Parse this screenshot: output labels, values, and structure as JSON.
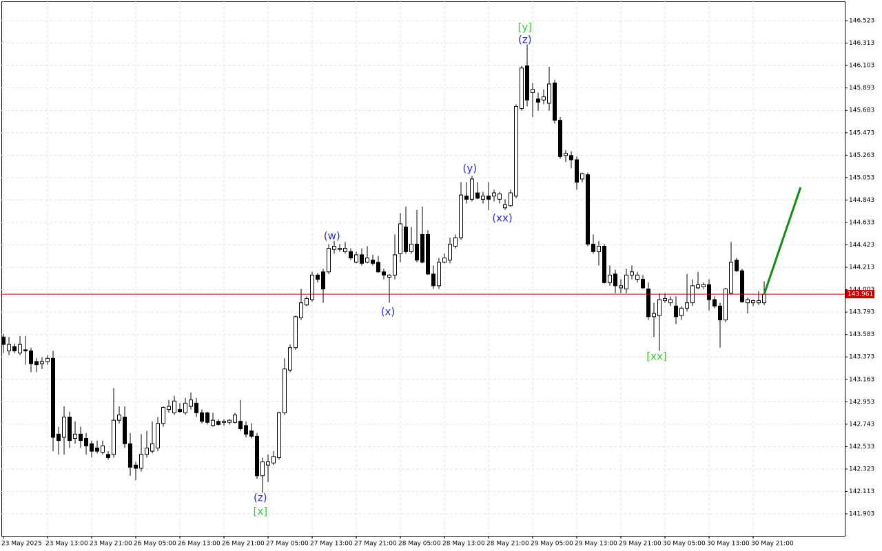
{
  "chart_data": {
    "type": "candlestick",
    "xlim": [
      -0.375,
      152.625
    ],
    "ylim": [
      141.697,
      146.704
    ],
    "yticks": [
      146.523,
      146.313,
      146.103,
      145.893,
      145.683,
      145.473,
      145.263,
      145.053,
      144.843,
      144.633,
      144.423,
      144.213,
      144.003,
      143.793,
      143.583,
      143.373,
      143.163,
      142.953,
      142.743,
      142.533,
      142.323,
      142.113,
      141.903
    ],
    "xticks": [
      {
        "value": 0,
        "label": "23 May 2025"
      },
      {
        "value": 8,
        "label": "23 May 13:00"
      },
      {
        "value": 16,
        "label": "23 May 21:00"
      },
      {
        "value": 24,
        "label": "26 May 05:00"
      },
      {
        "value": 32,
        "label": "26 May 13:00"
      },
      {
        "value": 40,
        "label": "26 May 21:00"
      },
      {
        "value": 48,
        "label": "27 May 05:00"
      },
      {
        "value": 56,
        "label": "27 May 13:00"
      },
      {
        "value": 64,
        "label": "27 May 21:00"
      },
      {
        "value": 72,
        "label": "28 May 05:00"
      },
      {
        "value": 80,
        "label": "28 May 13:00"
      },
      {
        "value": 88,
        "label": "28 May 21:00"
      },
      {
        "value": 96,
        "label": "29 May 05:00"
      },
      {
        "value": 104,
        "label": "29 May 13:00"
      },
      {
        "value": 112,
        "label": "29 May 21:00"
      },
      {
        "value": 120,
        "label": "30 May 05:00"
      },
      {
        "value": 128,
        "label": "30 May 13:00"
      },
      {
        "value": 136,
        "label": "30 May 21:00"
      }
    ],
    "grid": true,
    "up_color": "#ffffff",
    "down_color": "#000000",
    "series": {
      "open": [
        143.56,
        143.43,
        143.47,
        143.41,
        143.44,
        143.43,
        143.33,
        143.31,
        143.33,
        143.36,
        142.65,
        142.62,
        142.81,
        142.61,
        142.65,
        142.61,
        142.56,
        142.52,
        142.48,
        142.46,
        142.46,
        142.78,
        142.81,
        142.56,
        142.36,
        142.33,
        142.46,
        142.49,
        142.52,
        142.75,
        142.88,
        142.85,
        142.88,
        142.85,
        142.91,
        142.94,
        142.85,
        142.85,
        142.73,
        142.77,
        142.76,
        142.76,
        142.76,
        142.77,
        142.73,
        142.68,
        142.63,
        142.26,
        142.36,
        142.38,
        142.43,
        142.85,
        143.25,
        143.46,
        143.74,
        143.86,
        143.91,
        144.14,
        144.17,
        144.17,
        144.38,
        144.38,
        144.36,
        144.36,
        144.26,
        144.33,
        144.26,
        144.28,
        144.26,
        144.17,
        144.12,
        144.14,
        144.34,
        144.59,
        144.36,
        144.43,
        144.52,
        144.52,
        144.15,
        144.04,
        144.26,
        144.28,
        144.41,
        144.49,
        144.88,
        144.85,
        144.91,
        144.85,
        144.88,
        144.88,
        144.85,
        144.77,
        144.79,
        144.88,
        145.7,
        146.1,
        145.85,
        145.79,
        145.78,
        145.75,
        145.94,
        145.59,
        145.26,
        145.26,
        145.22,
        145.04,
        145.08,
        144.43,
        144.36,
        144.41,
        144.07,
        144.15,
        144.02,
        144.01,
        144.14,
        144.1,
        144.1,
        144.01,
        143.75,
        143.76,
        143.9,
        143.88,
        143.85,
        143.76,
        143.83,
        143.88,
        144.02,
        144.03,
        144.05,
        143.91,
        143.85,
        143.72,
        143.97,
        144.28,
        144.18,
        143.88,
        143.88,
        143.88,
        143.88
      ],
      "high": [
        143.59,
        143.56,
        143.5,
        143.57,
        143.57,
        143.46,
        143.36,
        143.37,
        143.39,
        143.43,
        142.72,
        142.91,
        142.86,
        142.77,
        142.72,
        142.66,
        142.59,
        142.59,
        142.59,
        142.49,
        143.08,
        142.91,
        142.91,
        142.66,
        142.39,
        142.65,
        142.68,
        142.77,
        142.81,
        142.91,
        142.97,
        143.01,
        142.94,
        142.99,
        143.04,
        142.99,
        142.88,
        142.86,
        142.85,
        142.79,
        142.79,
        142.79,
        142.85,
        142.97,
        142.77,
        142.75,
        142.66,
        142.43,
        142.46,
        142.49,
        142.86,
        143.36,
        143.49,
        143.76,
        144.01,
        143.94,
        144.17,
        144.16,
        144.2,
        144.43,
        144.46,
        144.43,
        144.45,
        144.39,
        144.36,
        144.39,
        144.41,
        144.33,
        144.32,
        144.2,
        144.15,
        144.52,
        144.72,
        144.78,
        144.59,
        144.75,
        144.78,
        144.56,
        144.23,
        144.3,
        144.34,
        144.49,
        144.52,
        145.01,
        145.01,
        145.07,
        145.01,
        144.92,
        145.01,
        144.94,
        144.92,
        144.85,
        144.94,
        145.74,
        146.1,
        146.3,
        145.94,
        145.85,
        145.88,
        146.09,
        145.97,
        145.62,
        145.31,
        145.3,
        145.25,
        145.1,
        145.1,
        144.52,
        144.46,
        144.43,
        144.23,
        144.19,
        144.1,
        144.2,
        144.23,
        144.17,
        144.14,
        144.07,
        143.88,
        143.97,
        143.97,
        143.94,
        143.94,
        143.85,
        144.15,
        144.1,
        144.17,
        144.07,
        144.1,
        143.94,
        143.88,
        144.02,
        144.45,
        144.3,
        144.2,
        143.93,
        143.91,
        143.99,
        144.08
      ],
      "low": [
        143.41,
        143.39,
        143.41,
        143.39,
        143.3,
        143.23,
        143.23,
        143.26,
        143.3,
        142.49,
        142.46,
        142.46,
        142.52,
        142.56,
        142.52,
        142.46,
        142.43,
        142.47,
        142.46,
        142.41,
        142.43,
        142.75,
        142.52,
        142.26,
        142.22,
        142.3,
        142.43,
        142.47,
        142.49,
        142.72,
        142.85,
        142.83,
        142.85,
        142.83,
        142.88,
        142.81,
        142.75,
        142.74,
        142.72,
        142.73,
        142.73,
        142.74,
        142.75,
        142.68,
        142.62,
        142.61,
        142.23,
        142.1,
        142.2,
        142.36,
        142.41,
        142.83,
        143.23,
        143.44,
        143.72,
        143.85,
        143.89,
        144.07,
        143.88,
        144.15,
        144.34,
        144.36,
        144.34,
        144.28,
        144.25,
        144.23,
        144.25,
        144.23,
        144.16,
        144.1,
        143.88,
        144.1,
        144.26,
        144.34,
        144.34,
        144.26,
        144.25,
        144.14,
        144.01,
        144.01,
        144.25,
        144.25,
        144.39,
        144.47,
        144.81,
        144.83,
        144.85,
        144.81,
        144.75,
        144.83,
        144.81,
        144.75,
        144.78,
        144.86,
        145.68,
        145.72,
        145.62,
        145.68,
        145.74,
        145.68,
        145.56,
        145.23,
        145.2,
        145.14,
        144.94,
        145.01,
        144.41,
        144.34,
        144.23,
        144.06,
        144.04,
        143.97,
        143.97,
        143.97,
        144.1,
        144.07,
        144.01,
        143.72,
        143.56,
        143.43,
        143.88,
        143.85,
        143.68,
        143.72,
        143.8,
        143.85,
        144.01,
        144.01,
        143.81,
        143.83,
        143.46,
        143.7,
        143.96,
        144.17,
        143.88,
        143.78,
        143.85,
        143.86,
        143.86
      ],
      "close": [
        143.49,
        143.49,
        143.43,
        143.49,
        143.43,
        143.31,
        143.3,
        143.33,
        143.36,
        142.62,
        142.59,
        142.81,
        142.59,
        142.65,
        142.59,
        142.54,
        142.49,
        142.49,
        142.54,
        142.43,
        142.78,
        142.83,
        142.56,
        142.34,
        142.33,
        142.46,
        142.52,
        142.56,
        142.75,
        142.9,
        142.91,
        142.96,
        142.86,
        142.94,
        142.97,
        142.85,
        142.77,
        142.76,
        142.78,
        142.74,
        142.77,
        142.78,
        142.83,
        142.7,
        142.65,
        142.63,
        142.26,
        142.39,
        142.39,
        142.44,
        142.85,
        143.26,
        143.46,
        143.75,
        143.88,
        143.92,
        144.14,
        144.1,
        144.01,
        144.39,
        144.41,
        144.39,
        144.39,
        144.3,
        144.33,
        144.25,
        144.3,
        144.25,
        144.17,
        144.14,
        144.14,
        144.33,
        144.62,
        144.36,
        144.43,
        144.28,
        144.26,
        144.15,
        144.04,
        144.26,
        144.3,
        144.43,
        144.49,
        144.89,
        144.85,
        145.04,
        144.86,
        144.88,
        144.85,
        144.91,
        144.9,
        144.8,
        144.91,
        145.72,
        146.08,
        145.78,
        145.88,
        145.76,
        145.81,
        145.93,
        145.59,
        145.25,
        145.28,
        145.22,
        145.01,
        145.09,
        144.43,
        144.36,
        144.41,
        144.07,
        144.14,
        144.04,
        144.04,
        144.14,
        144.17,
        144.14,
        144.02,
        143.75,
        143.78,
        143.91,
        143.92,
        143.91,
        143.75,
        143.83,
        143.88,
        144.04,
        144.05,
        144.05,
        143.91,
        143.85,
        143.72,
        144.01,
        144.26,
        144.18,
        143.89,
        143.91,
        143.9,
        143.9,
        143.96
      ]
    },
    "current_price": 143.961,
    "current_price_color": "#c00000",
    "forecast": {
      "color": "#138a13",
      "x": [
        138,
        144.6
      ],
      "y": [
        143.961,
        144.962
      ]
    },
    "annotations": [
      {
        "text": "(z)",
        "color": "#2a2ad0",
        "x": 46.6,
        "y": 142.052
      },
      {
        "text": "[x]",
        "color": "#3cc83c",
        "x": 46.6,
        "y": 141.923
      },
      {
        "text": "(w)",
        "color": "#2a2ad0",
        "x": 59.6,
        "y": 144.504
      },
      {
        "text": "(x)",
        "color": "#2a2ad0",
        "x": 69.75,
        "y": 143.794
      },
      {
        "text": "(y)",
        "color": "#2a2ad0",
        "x": 84.6,
        "y": 145.136
      },
      {
        "text": "(xx)",
        "color": "#2a2ad0",
        "x": 90.5,
        "y": 144.671
      },
      {
        "text": "[y]",
        "color": "#3cc83c",
        "x": 94.6,
        "y": 146.458
      },
      {
        "text": "(z)",
        "color": "#2a2ad0",
        "x": 94.6,
        "y": 146.342
      },
      {
        "text": "[xx]",
        "color": "#3cc83c",
        "x": 118.5,
        "y": 143.375
      }
    ]
  }
}
